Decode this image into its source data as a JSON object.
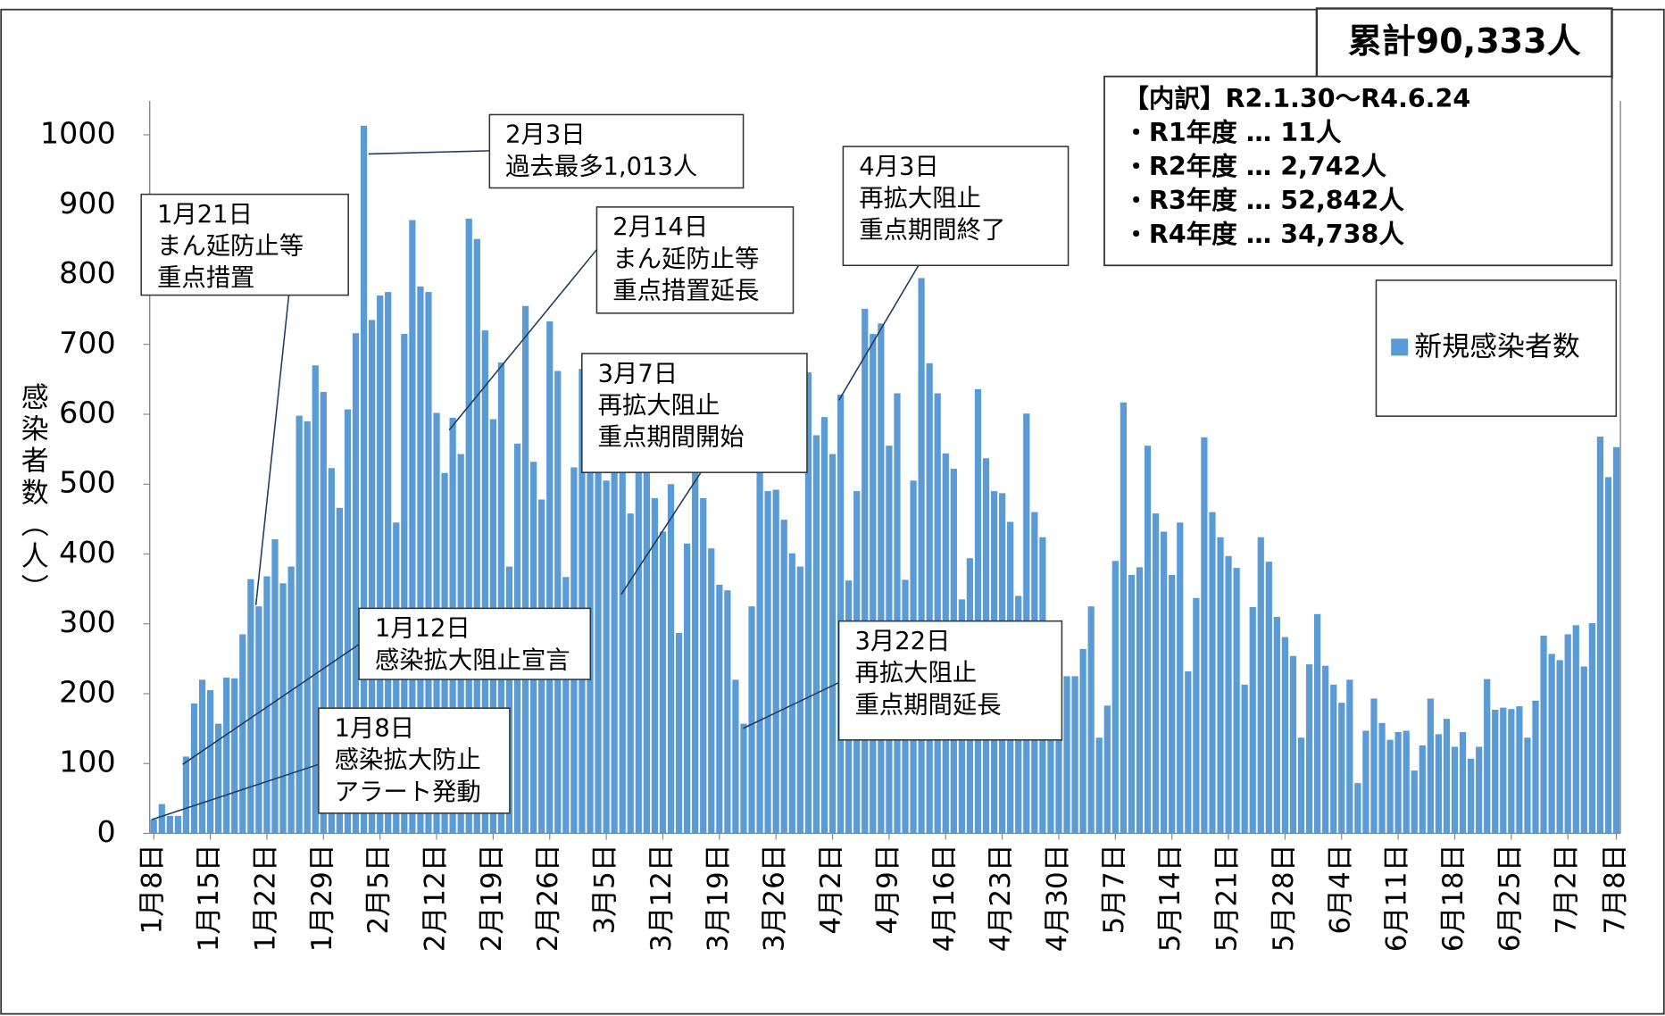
{
  "chart_data": {
    "type": "bar",
    "y_label": "感染者数（人）",
    "total_label": "累計90,333人",
    "breakdown": [
      "【内訳】R2.1.30～R4.6.24",
      "・R1年度 … 11人",
      "・R2年度 … 2,742人",
      "・R3年度 … 52,842人",
      "・R4年度 … 34,738人"
    ],
    "legend": "right",
    "grid": false,
    "ylim": [
      0,
      1000
    ],
    "yticks": [
      0,
      100,
      200,
      300,
      400,
      500,
      600,
      700,
      800,
      900,
      1000
    ],
    "categories": [
      "1月8日",
      null,
      null,
      null,
      null,
      null,
      null,
      "1月15日",
      null,
      null,
      null,
      null,
      null,
      null,
      "1月22日",
      null,
      null,
      null,
      null,
      null,
      null,
      "1月29日",
      null,
      null,
      null,
      null,
      null,
      null,
      "2月5日",
      null,
      null,
      null,
      null,
      null,
      null,
      "2月12日",
      null,
      null,
      null,
      null,
      null,
      null,
      "2月19日",
      null,
      null,
      null,
      null,
      null,
      null,
      "2月26日",
      null,
      null,
      null,
      null,
      null,
      null,
      "3月5日",
      null,
      null,
      null,
      null,
      null,
      null,
      "3月12日",
      null,
      null,
      null,
      null,
      null,
      null,
      "3月19日",
      null,
      null,
      null,
      null,
      null,
      null,
      "3月26日",
      null,
      null,
      null,
      null,
      null,
      null,
      "4月2日",
      null,
      null,
      null,
      null,
      null,
      null,
      "4月9日",
      null,
      null,
      null,
      null,
      null,
      null,
      "4月16日",
      null,
      null,
      null,
      null,
      null,
      null,
      "4月23日",
      null,
      null,
      null,
      null,
      null,
      null,
      "4月30日",
      null,
      null,
      null,
      null,
      null,
      null,
      "5月7日",
      null,
      null,
      null,
      null,
      null,
      null,
      "5月14日",
      null,
      null,
      null,
      null,
      null,
      null,
      "5月21日",
      null,
      null,
      null,
      null,
      null,
      null,
      "5月28日",
      null,
      null,
      null,
      null,
      null,
      null,
      "6月4日",
      null,
      null,
      null,
      null,
      null,
      null,
      "6月11日",
      null,
      null,
      null,
      null,
      null,
      null,
      "6月18日",
      null,
      null,
      null,
      null,
      null,
      null,
      "6月25日",
      null,
      null,
      null,
      null,
      null,
      null,
      "7月2日",
      null,
      null,
      null,
      null,
      null,
      "7月8日"
    ],
    "series": [
      {
        "name": "新規感染者数",
        "color": "#5b9bd5",
        "values": [
          20,
          42,
          25,
          25,
          110,
          186,
          220,
          205,
          157,
          223,
          222,
          285,
          364,
          325,
          368,
          421,
          358,
          382,
          598,
          590,
          670,
          632,
          523,
          466,
          607,
          716,
          1013,
          735,
          770,
          775,
          445,
          715,
          878,
          783,
          775,
          602,
          516,
          595,
          543,
          880,
          851,
          720,
          593,
          674,
          382,
          558,
          755,
          532,
          478,
          733,
          662,
          367,
          524,
          665,
          540,
          560,
          505,
          620,
          600,
          458,
          520,
          560,
          480,
          432,
          500,
          287,
          415,
          560,
          480,
          408,
          356,
          348,
          220,
          157,
          325,
          530,
          490,
          492,
          449,
          401,
          382,
          660,
          570,
          596,
          543,
          628,
          362,
          490,
          751,
          715,
          730,
          555,
          630,
          363,
          505,
          795,
          673,
          630,
          544,
          522,
          335,
          394,
          636,
          537,
          490,
          487,
          446,
          340,
          601,
          460,
          424,
          300,
          250,
          225,
          225,
          264,
          325,
          137,
          183,
          390,
          617,
          370,
          381,
          555,
          458,
          432,
          370,
          445,
          232,
          337,
          567,
          460,
          424,
          397,
          380,
          213,
          324,
          424,
          389,
          310,
          281,
          254,
          137,
          242,
          314,
          240,
          213,
          187,
          220,
          72,
          147,
          193,
          158,
          134,
          145,
          147,
          90,
          126,
          193,
          142,
          164,
          124,
          145,
          107,
          124,
          221,
          177,
          180,
          178,
          182,
          137,
          190,
          283,
          257,
          248,
          285,
          298,
          239,
          301,
          568,
          510,
          553
        ]
      }
    ],
    "annotations": [
      {
        "lines": [
          "1月8日",
          "感染拡大防止",
          "アラート発動"
        ]
      },
      {
        "lines": [
          "1月12日",
          "感染拡大阻止宣言"
        ]
      },
      {
        "lines": [
          "1月21日",
          "まん延防止等",
          "重点措置"
        ]
      },
      {
        "lines": [
          "2月3日",
          "過去最多1,013人"
        ]
      },
      {
        "lines": [
          "2月14日",
          "まん延防止等",
          "重点措置延長"
        ]
      },
      {
        "lines": [
          "3月7日",
          "再拡大阻止",
          "重点期間開始"
        ]
      },
      {
        "lines": [
          "3月22日",
          "再拡大阻止",
          "重点期間延長"
        ]
      },
      {
        "lines": [
          "4月3日",
          "再拡大阻止",
          "重点期間終了"
        ]
      }
    ]
  }
}
